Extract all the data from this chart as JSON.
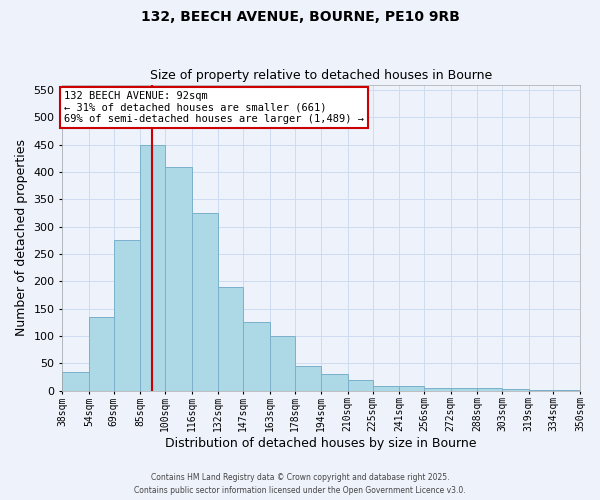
{
  "title": "132, BEECH AVENUE, BOURNE, PE10 9RB",
  "subtitle": "Size of property relative to detached houses in Bourne",
  "xlabel": "Distribution of detached houses by size in Bourne",
  "ylabel": "Number of detached properties",
  "bin_labels": [
    "38sqm",
    "54sqm",
    "69sqm",
    "85sqm",
    "100sqm",
    "116sqm",
    "132sqm",
    "147sqm",
    "163sqm",
    "178sqm",
    "194sqm",
    "210sqm",
    "225sqm",
    "241sqm",
    "256sqm",
    "272sqm",
    "288sqm",
    "303sqm",
    "319sqm",
    "334sqm",
    "350sqm"
  ],
  "bin_edges": [
    38,
    54,
    69,
    85,
    100,
    116,
    132,
    147,
    163,
    178,
    194,
    210,
    225,
    241,
    256,
    272,
    288,
    303,
    319,
    334,
    350
  ],
  "bar_heights": [
    35,
    135,
    275,
    450,
    410,
    325,
    190,
    125,
    100,
    45,
    30,
    20,
    8,
    8,
    5,
    5,
    5,
    3,
    2,
    2,
    2
  ],
  "bar_color": "#add8e6",
  "bar_edge_color": "#7ab0cc",
  "grid_color": "#ccdcf0",
  "background_color": "#eef2fb",
  "red_line_x": 92,
  "annotation_title": "132 BEECH AVENUE: 92sqm",
  "annotation_line1": "← 31% of detached houses are smaller (661)",
  "annotation_line2": "69% of semi-detached houses are larger (1,489) →",
  "annotation_box_color": "#ffffff",
  "annotation_border_color": "#cc0000",
  "red_line_color": "#cc0000",
  "ylim": [
    0,
    560
  ],
  "yticks": [
    0,
    50,
    100,
    150,
    200,
    250,
    300,
    350,
    400,
    450,
    500,
    550
  ],
  "footer1": "Contains HM Land Registry data © Crown copyright and database right 2025.",
  "footer2": "Contains public sector information licensed under the Open Government Licence v3.0."
}
